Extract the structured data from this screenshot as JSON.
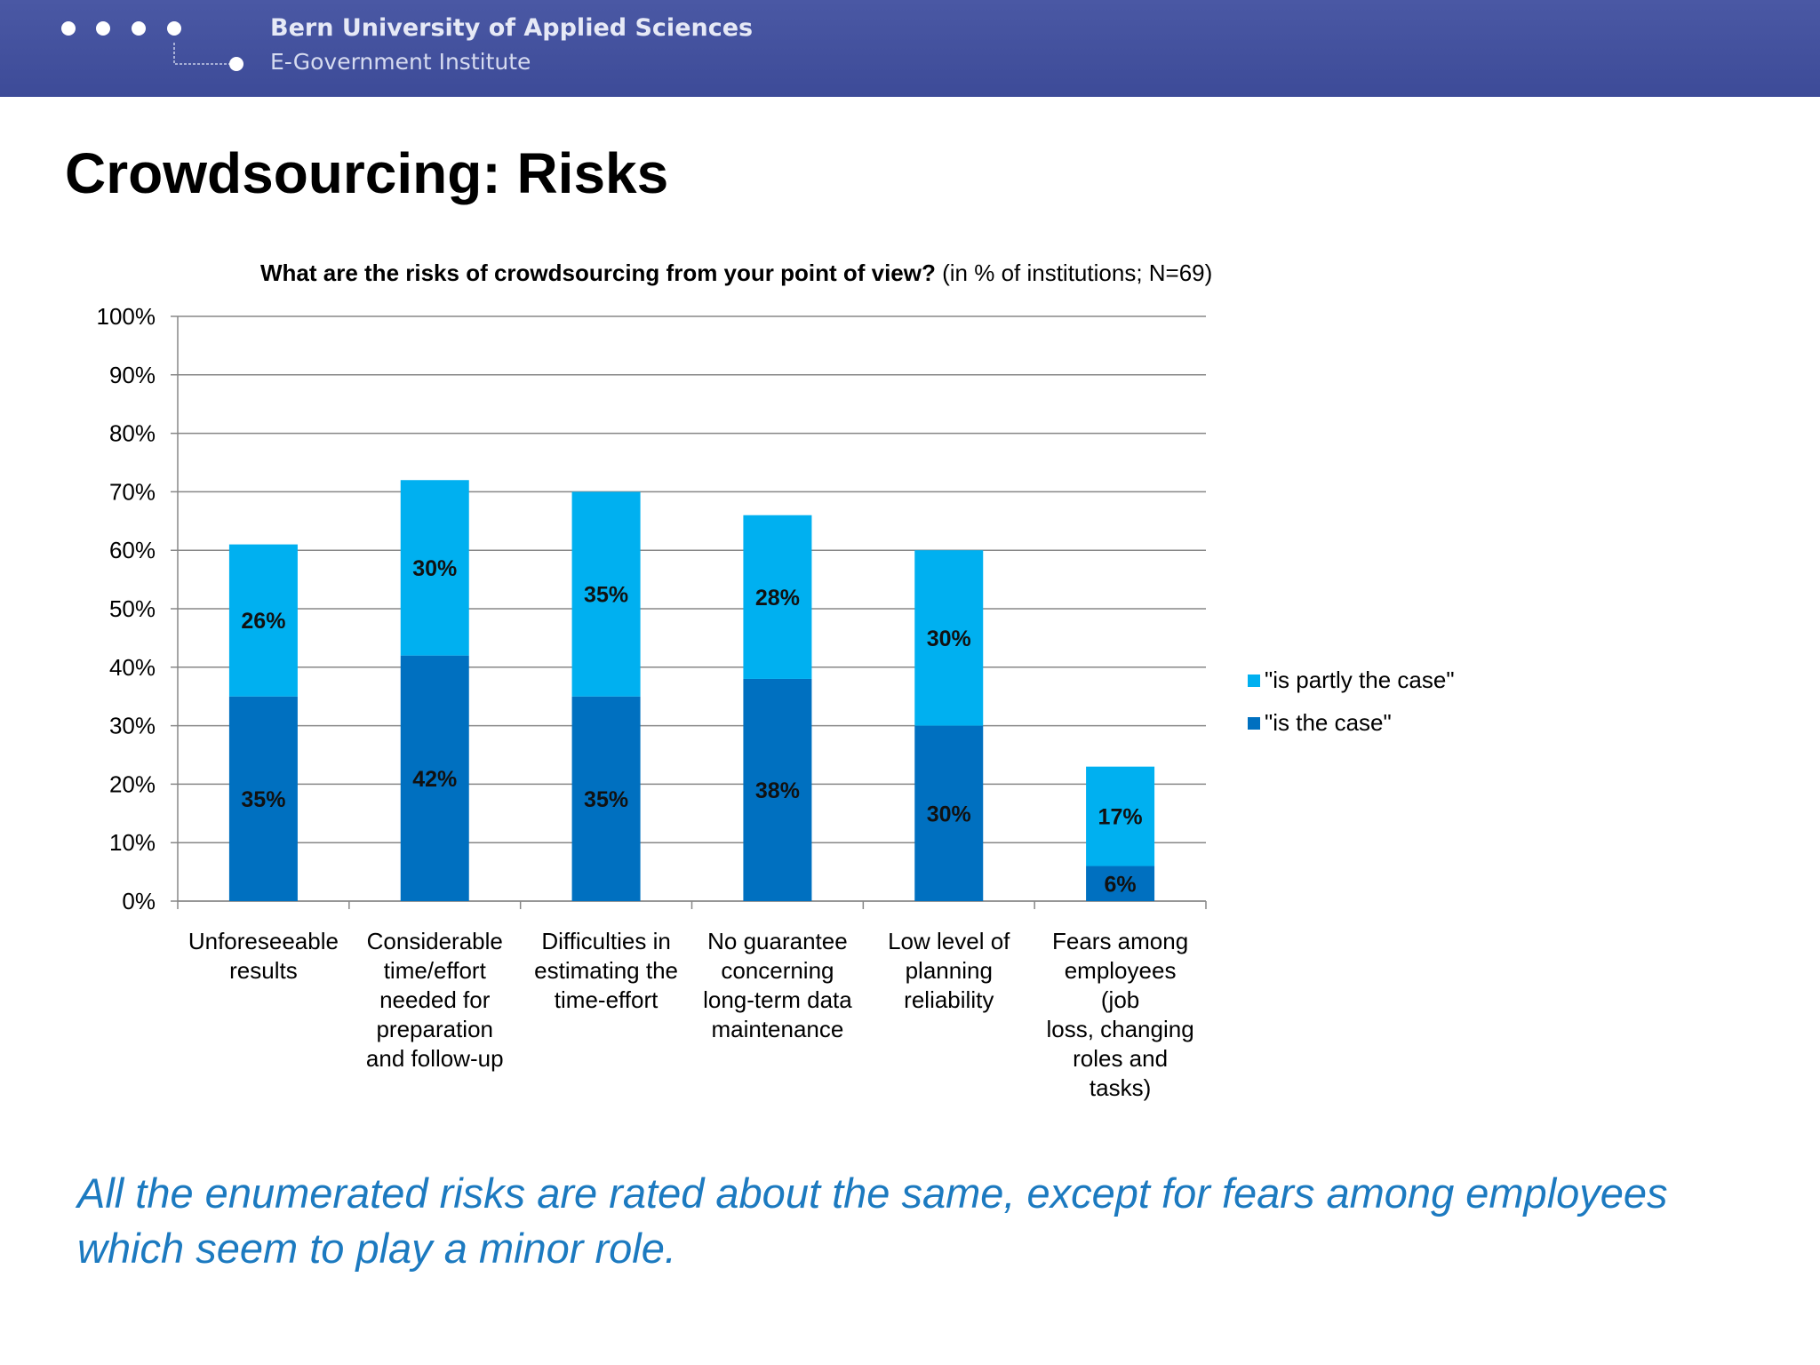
{
  "header": {
    "institution": "Bern University of Applied Sciences",
    "institute": "E-Government Institute",
    "header_color": "#4351a0"
  },
  "slide": {
    "title": "Crowdsourcing: Risks",
    "caption": "All the enumerated risks are rated about the same, except for fears among employees which seem to play a minor role."
  },
  "chart_data": {
    "type": "bar",
    "stacked": true,
    "title": "What are the risks of crowdsourcing from your point of view?",
    "subtitle": "(in % of institutions; N=69)",
    "categories": [
      [
        "Unforeseeable",
        "results"
      ],
      [
        "Considerable",
        "time/effort",
        "needed for",
        "preparation",
        "and follow-up"
      ],
      [
        "Difficulties in",
        "estimating the",
        "time-effort"
      ],
      [
        "No guarantee",
        "concerning",
        "long-term data",
        "maintenance"
      ],
      [
        "Low level of",
        "planning",
        "reliability"
      ],
      [
        "Fears among",
        "employees",
        "(job",
        "loss, changing",
        "roles and",
        "tasks)"
      ]
    ],
    "series": [
      {
        "name": "\"is the case\"",
        "color": "#0070c0",
        "values": [
          35,
          42,
          35,
          38,
          30,
          6
        ],
        "labels": [
          "35%",
          "42%",
          "35%",
          "38%",
          "30%",
          "6%"
        ]
      },
      {
        "name": "\"is partly the case\"",
        "color": "#00b0f0",
        "values": [
          26,
          30,
          35,
          28,
          30,
          17
        ],
        "labels": [
          "26%",
          "30%",
          "35%",
          "28%",
          "30%",
          "17%"
        ]
      }
    ],
    "y_ticks": [
      "0%",
      "10%",
      "20%",
      "30%",
      "40%",
      "50%",
      "60%",
      "70%",
      "80%",
      "90%",
      "100%"
    ],
    "ylim": [
      0,
      100
    ],
    "grid": true,
    "legend": "right"
  }
}
